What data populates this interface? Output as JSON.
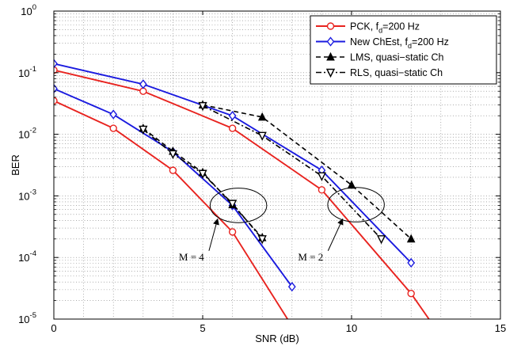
{
  "chart_data": {
    "type": "line",
    "xlabel": "SNR (dB)",
    "ylabel": "BER",
    "x_scale": "linear",
    "y_scale": "log",
    "xlim": [
      0,
      15
    ],
    "ylim": [
      1e-05,
      1
    ],
    "x_ticks": [
      0,
      5,
      10,
      15
    ],
    "y_ticks": [
      {
        "value": 1,
        "base": "10",
        "exp": "0"
      },
      {
        "value": 0.1,
        "base": "10",
        "exp": "-1"
      },
      {
        "value": 0.01,
        "base": "10",
        "exp": "-2"
      },
      {
        "value": 0.001,
        "base": "10",
        "exp": "-3"
      },
      {
        "value": 0.0001,
        "base": "10",
        "exp": "-4"
      },
      {
        "value": 1e-05,
        "base": "10",
        "exp": "-5"
      }
    ],
    "grid": true,
    "legend_position": "top-right",
    "series": [
      {
        "key": "pck-m2",
        "legend": {
          "main": "PCK, f",
          "sub": "d",
          "tail": "=200 Hz"
        },
        "color": "#e8231f",
        "dash": "solid",
        "marker": "circle",
        "x": [
          0,
          3,
          6,
          9,
          12,
          12.6
        ],
        "y": [
          0.11,
          0.05,
          0.0125,
          0.00125,
          2.6e-05,
          1e-05
        ]
      },
      {
        "key": "newchest-m2",
        "legend": {
          "main": "New ChEst, f",
          "sub": "d",
          "tail": "=200 Hz"
        },
        "color": "#1a1adf",
        "dash": "solid",
        "marker": "diamond",
        "x": [
          0,
          3,
          6,
          9,
          12
        ],
        "y": [
          0.14,
          0.065,
          0.02,
          0.0026,
          8.2e-05
        ]
      },
      {
        "key": "lms-m2",
        "legend": {
          "main": "LMS, quasi−static Ch",
          "sub": "",
          "tail": ""
        },
        "color": "#000000",
        "dash": "dashed",
        "marker": "triangle-up",
        "x": [
          5,
          7,
          10,
          12
        ],
        "y": [
          0.03,
          0.019,
          0.0015,
          0.0002
        ]
      },
      {
        "key": "rls-m2",
        "legend": {
          "main": "RLS, quasi−static Ch",
          "sub": "",
          "tail": ""
        },
        "color": "#000000",
        "dash": "dashdot",
        "marker": "triangle-down",
        "x": [
          5,
          7,
          9,
          11
        ],
        "y": [
          0.029,
          0.0095,
          0.0021,
          0.0002
        ]
      },
      {
        "key": "pck-m4",
        "legend": null,
        "color": "#e8231f",
        "dash": "solid",
        "marker": "circle",
        "x": [
          0,
          2,
          4,
          6,
          7.85
        ],
        "y": [
          0.035,
          0.0125,
          0.0026,
          0.00026,
          1e-05
        ]
      },
      {
        "key": "newchest-m4",
        "legend": null,
        "color": "#1a1adf",
        "dash": "solid",
        "marker": "diamond",
        "x": [
          0,
          2,
          4,
          6,
          8
        ],
        "y": [
          0.055,
          0.021,
          0.0052,
          0.0007,
          3.35e-05
        ]
      },
      {
        "key": "lms-m4",
        "legend": null,
        "color": "#000000",
        "dash": "dashed",
        "marker": "triangle-up",
        "x": [
          3,
          4,
          5,
          6,
          7
        ],
        "y": [
          0.0125,
          0.0053,
          0.0024,
          0.00072,
          0.00021
        ]
      },
      {
        "key": "rls-m4",
        "legend": null,
        "color": "#000000",
        "dash": "dashdot",
        "marker": "triangle-down",
        "x": [
          3,
          4,
          5,
          6,
          7
        ],
        "y": [
          0.012,
          0.0048,
          0.0023,
          0.00075,
          0.0002
        ]
      }
    ],
    "annotations": [
      {
        "text": "M = 4",
        "ellipse_center": [
          6.2,
          0.0007
        ],
        "ellipse_rx_x": 0.95,
        "ellipse_log_ry": 0.28,
        "text_at": [
          4.2,
          9e-05
        ],
        "arrow_to": [
          5.5,
          0.00042
        ]
      },
      {
        "text": "M = 2",
        "ellipse_center": [
          10.15,
          0.00072
        ],
        "ellipse_rx_x": 0.95,
        "ellipse_log_ry": 0.28,
        "text_at": [
          8.2,
          9e-05
        ],
        "arrow_to": [
          9.7,
          0.00042
        ]
      }
    ]
  }
}
